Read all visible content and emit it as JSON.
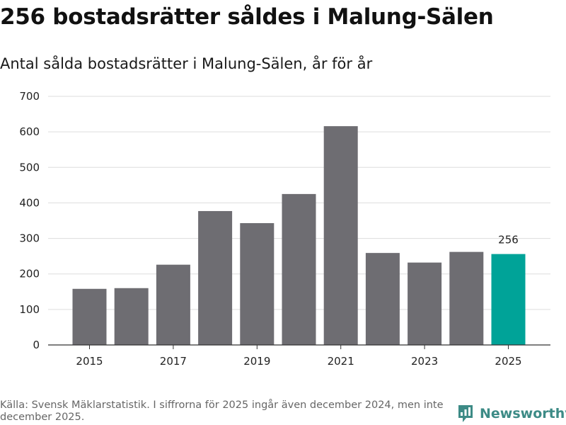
{
  "header": {
    "title": "256 bostadsrätter såldes i Malung-Sälen",
    "subtitle": "Antal sålda bostadsrätter i Malung-Sälen, år för år"
  },
  "footer": {
    "source": "Källa: Svensk Mäklarstatistik. I siffrorna för 2025 ingår även december 2024, men inte december 2025.",
    "brand": "Newsworthy",
    "brand_icon": "newsworthy-logo-icon"
  },
  "colors": {
    "bar": "#6e6d72",
    "highlight": "#00a398",
    "grid": "#dddddd",
    "axis": "#333333",
    "brand": "#3d8b86"
  },
  "chart_data": {
    "type": "bar",
    "title": "Antal sålda bostadsrätter i Malung-Sälen, år för år",
    "xlabel": "",
    "ylabel": "",
    "categories": [
      "2015",
      "2016",
      "2017",
      "2018",
      "2019",
      "2020",
      "2021",
      "2022",
      "2023",
      "2024",
      "2025"
    ],
    "values": [
      158,
      160,
      226,
      377,
      343,
      425,
      616,
      259,
      232,
      262,
      256
    ],
    "x_tick_labels": [
      "2015",
      "2017",
      "2019",
      "2021",
      "2023",
      "2025"
    ],
    "y_ticks": [
      0,
      100,
      200,
      300,
      400,
      500,
      600,
      700
    ],
    "ylim": [
      0,
      700
    ],
    "highlight_category": "2025",
    "data_labels": [
      {
        "category": "2025",
        "text": "256"
      }
    ],
    "grid": true,
    "legend": "none"
  }
}
